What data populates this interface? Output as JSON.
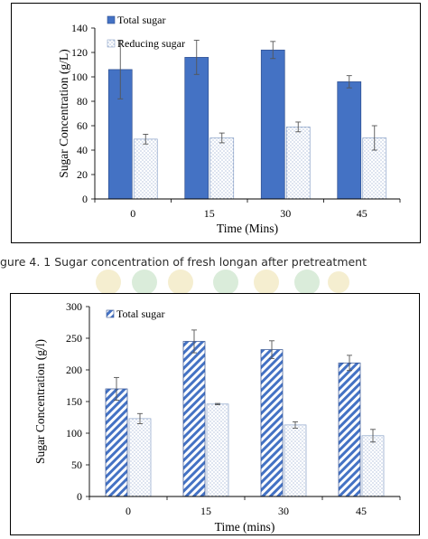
{
  "caption": {
    "prefix": "gure 4. 1",
    "text": "Sugar concentration of fresh longan after pretreatment"
  },
  "chart_data": [
    {
      "type": "bar",
      "categories": [
        "0",
        "15",
        "30",
        "45"
      ],
      "series": [
        {
          "name": "Total sugar",
          "values": [
            106,
            116,
            122,
            96
          ],
          "errors": [
            24,
            14,
            7,
            5
          ],
          "color": "#4472c4",
          "pattern": "solid"
        },
        {
          "name": "Reducing sugar",
          "values": [
            49,
            50,
            59,
            50
          ],
          "errors": [
            4,
            4,
            4,
            10
          ],
          "color": "#ffffff",
          "pattern": "dots"
        }
      ],
      "xlabel": "Time (Mins)",
      "ylabel": "Sugar Concentration (g/L)",
      "ylim": [
        0,
        140
      ],
      "yticks": [
        0,
        20,
        40,
        60,
        80,
        100,
        120,
        140
      ],
      "grid": false,
      "legend": "top-left"
    },
    {
      "type": "bar",
      "categories": [
        "0",
        "15",
        "30",
        "45"
      ],
      "series": [
        {
          "name": "Total sugar",
          "values": [
            170,
            245,
            232,
            211
          ],
          "errors": [
            18,
            18,
            14,
            12
          ],
          "color": "#4472c4",
          "pattern": "diagonal"
        },
        {
          "values": [
            123,
            146,
            113,
            96
          ],
          "errors": [
            8,
            1,
            5,
            10
          ],
          "color": "#ffffff",
          "pattern": "dots"
        }
      ],
      "xlabel": "Time (mins)",
      "ylabel": "Sugar Concentration (g/l)",
      "ylim": [
        0,
        300
      ],
      "yticks": [
        0,
        50,
        100,
        150,
        200,
        250,
        300
      ],
      "grid": false,
      "legend": "top-left"
    }
  ]
}
